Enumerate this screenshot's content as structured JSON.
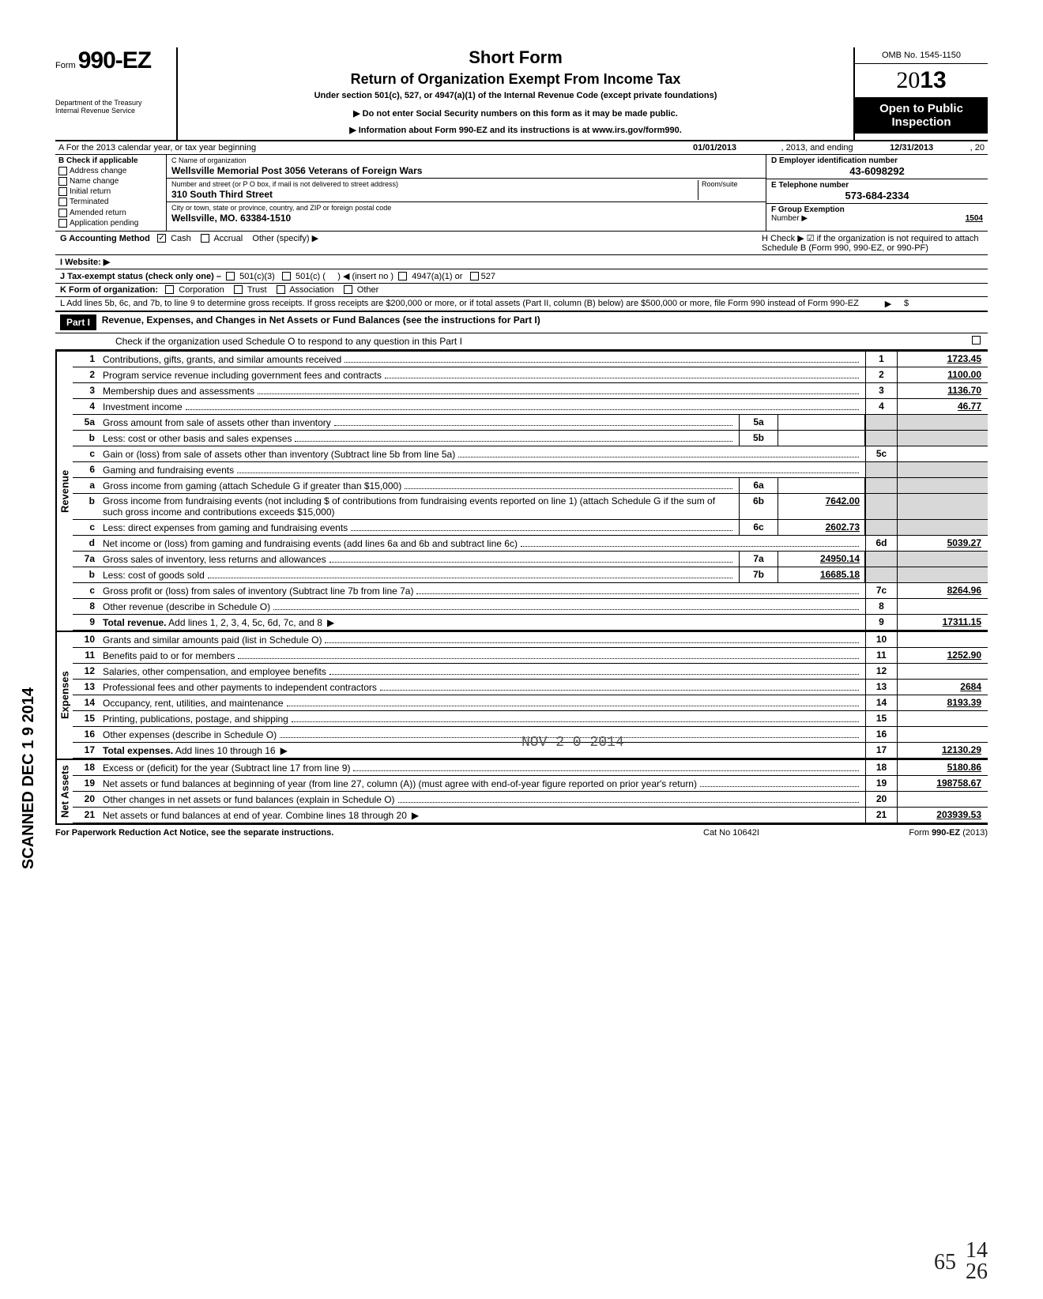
{
  "header": {
    "form_prefix": "Form",
    "form_number": "990-EZ",
    "dept1": "Department of the Treasury",
    "dept2": "Internal Revenue Service",
    "title1": "Short Form",
    "title2": "Return of Organization Exempt From Income Tax",
    "subtitle": "Under section 501(c), 527, or 4947(a)(1) of the Internal Revenue Code (except private foundations)",
    "note1": "▶ Do not enter Social Security numbers on this form as it may be made public.",
    "note2": "▶ Information about Form 990-EZ and its instructions is at www.irs.gov/form990.",
    "omb": "OMB No. 1545-1150",
    "year_light": "20",
    "year_bold": "13",
    "open": "Open to Public Inspection"
  },
  "rowA": {
    "label": "A  For the 2013 calendar year, or tax year beginning",
    "begin": "01/01/2013",
    "mid": ", 2013, and ending",
    "end": "12/31/2013",
    "tail": ", 20"
  },
  "B": {
    "hdr": "B  Check if applicable",
    "items": [
      "Address change",
      "Name change",
      "Initial return",
      "Terminated",
      "Amended return",
      "Application pending"
    ]
  },
  "C": {
    "name_label": "C  Name of organization",
    "name": "Wellsville Memorial Post 3056 Veterans of Foreign Wars",
    "street_label": "Number and street (or P O  box, if mail is not delivered to street address)",
    "room_label": "Room/suite",
    "street": "310 South Third Street",
    "city_label": "City or town, state or province, country, and ZIP or foreign postal code",
    "city": "Wellsville, MO. 63384-1510"
  },
  "D": {
    "label": "D Employer identification number",
    "val": "43-6098292"
  },
  "E": {
    "label": "E  Telephone number",
    "val": "573-684-2334"
  },
  "F": {
    "label": "F  Group Exemption",
    "label2": "Number ▶",
    "val": "1504"
  },
  "G": {
    "label": "G  Accounting Method",
    "cash": "Cash",
    "accrual": "Accrual",
    "other": "Other (specify) ▶"
  },
  "H": {
    "text": "H  Check ▶ ☑ if the organization is not required to attach Schedule B (Form 990, 990-EZ, or 990-PF)"
  },
  "I": {
    "label": "I   Website: ▶"
  },
  "J": {
    "label": "J  Tax-exempt status (check only one) –",
    "o1": "501(c)(3)",
    "o2": "501(c) (",
    "o3": ") ◀ (insert no )",
    "o4": "4947(a)(1) or",
    "o5": "527"
  },
  "K": {
    "label": "K  Form of organization:",
    "o1": "Corporation",
    "o2": "Trust",
    "o3": "Association",
    "o4": "Other"
  },
  "L": {
    "text": "L  Add lines 5b, 6c, and 7b, to line 9 to determine gross receipts. If gross receipts are $200,000 or more, or if total assets (Part II, column (B) below) are $500,000 or more, file Form 990 instead of Form 990-EZ",
    "arrow": "▶",
    "amt": "$"
  },
  "part1": {
    "hdr": "Part I",
    "title": "Revenue, Expenses, and Changes in Net Assets or Fund Balances (see the instructions for Part I)",
    "check": "Check if the organization used Schedule O to respond to any question in this Part I"
  },
  "side": {
    "rev": "Revenue",
    "exp": "Expenses",
    "na": "Net Assets"
  },
  "lines": {
    "l1": {
      "n": "1",
      "d": "Contributions, gifts, grants, and similar amounts received",
      "b": "1",
      "a": "1723.45"
    },
    "l2": {
      "n": "2",
      "d": "Program service revenue including government fees and contracts",
      "b": "2",
      "a": "1100.00"
    },
    "l3": {
      "n": "3",
      "d": "Membership dues and assessments",
      "b": "3",
      "a": "1136.70"
    },
    "l4": {
      "n": "4",
      "d": "Investment income",
      "b": "4",
      "a": "46.77"
    },
    "l5a": {
      "n": "5a",
      "d": "Gross amount from sale of assets other than inventory",
      "mb": "5a",
      "ma": ""
    },
    "l5b": {
      "n": "b",
      "d": "Less: cost or other basis and sales expenses",
      "mb": "5b",
      "ma": ""
    },
    "l5c": {
      "n": "c",
      "d": "Gain or (loss) from sale of assets other than inventory (Subtract line 5b from line 5a)",
      "b": "5c",
      "a": ""
    },
    "l6": {
      "n": "6",
      "d": "Gaming and fundraising events"
    },
    "l6a": {
      "n": "a",
      "d": "Gross income from gaming (attach Schedule G if greater than $15,000)",
      "mb": "6a",
      "ma": ""
    },
    "l6b": {
      "n": "b",
      "d": "Gross income from fundraising events (not including  $                     of contributions from fundraising events reported on line 1) (attach Schedule G if the sum of such gross income and contributions exceeds $15,000)",
      "mb": "6b",
      "ma": "7642.00"
    },
    "l6c": {
      "n": "c",
      "d": "Less: direct expenses from gaming and fundraising events",
      "mb": "6c",
      "ma": "2602.73"
    },
    "l6d": {
      "n": "d",
      "d": "Net income or (loss) from gaming and fundraising events (add lines 6a and 6b and subtract line 6c)",
      "b": "6d",
      "a": "5039.27"
    },
    "l7a": {
      "n": "7a",
      "d": "Gross sales of inventory, less returns and allowances",
      "mb": "7a",
      "ma": "24950.14"
    },
    "l7b": {
      "n": "b",
      "d": "Less: cost of goods sold",
      "mb": "7b",
      "ma": "16685.18"
    },
    "l7c": {
      "n": "c",
      "d": "Gross profit or (loss) from sales of inventory (Subtract line 7b from line 7a)",
      "b": "7c",
      "a": "8264.96"
    },
    "l8": {
      "n": "8",
      "d": "Other revenue (describe in Schedule O)",
      "b": "8",
      "a": ""
    },
    "l9": {
      "n": "9",
      "d": "Total revenue. Add lines 1, 2, 3, 4, 5c, 6d, 7c, and 8",
      "b": "9",
      "a": "17311.15",
      "arrow": "▶",
      "bold": true
    },
    "l10": {
      "n": "10",
      "d": "Grants and similar amounts paid (list in Schedule O)",
      "b": "10",
      "a": ""
    },
    "l11": {
      "n": "11",
      "d": "Benefits paid to or for members",
      "b": "11",
      "a": "1252.90"
    },
    "l12": {
      "n": "12",
      "d": "Salaries, other compensation, and employee benefits",
      "b": "12",
      "a": ""
    },
    "l13": {
      "n": "13",
      "d": "Professional fees and other payments to independent contractors",
      "b": "13",
      "a": "2684"
    },
    "l14": {
      "n": "14",
      "d": "Occupancy, rent, utilities, and maintenance",
      "b": "14",
      "a": "8193.39"
    },
    "l15": {
      "n": "15",
      "d": "Printing, publications, postage, and shipping",
      "b": "15",
      "a": ""
    },
    "l16": {
      "n": "16",
      "d": "Other expenses (describe in Schedule O)",
      "b": "16",
      "a": ""
    },
    "l17": {
      "n": "17",
      "d": "Total expenses. Add lines 10 through 16",
      "b": "17",
      "a": "12130.29",
      "arrow": "▶",
      "bold": true
    },
    "l18": {
      "n": "18",
      "d": "Excess or (deficit) for the year (Subtract line 17 from line 9)",
      "b": "18",
      "a": "5180.86"
    },
    "l19": {
      "n": "19",
      "d": "Net assets or fund balances at beginning of year (from line 27, column (A)) (must agree with end-of-year figure reported on prior year's return)",
      "b": "19",
      "a": "198758.67"
    },
    "l20": {
      "n": "20",
      "d": "Other changes in net assets or fund balances (explain in Schedule O)",
      "b": "20",
      "a": ""
    },
    "l21": {
      "n": "21",
      "d": "Net assets or fund balances at end of year. Combine lines 18 through 20",
      "b": "21",
      "a": "203939.53",
      "arrow": "▶"
    }
  },
  "footer": {
    "left": "For Paperwork Reduction Act Notice, see the separate instructions.",
    "mid": "Cat No  10642I",
    "right": "Form 990-EZ (2013)"
  },
  "scanned": "SCANNED DEC 1 9 2014",
  "stamp": "NOV 2 0 2014",
  "hand1": "65",
  "hand2": "14",
  "hand3": "26"
}
